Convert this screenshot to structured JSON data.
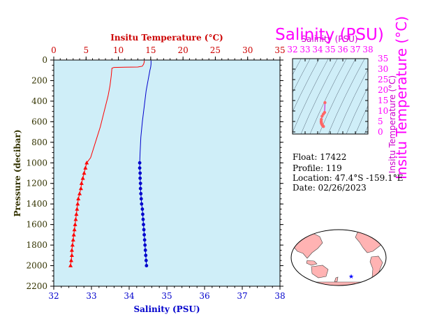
{
  "chart_data": [
    {
      "type": "line",
      "top_axis_label": "Insitu Temperature (°C)",
      "bottom_axis_label": "Salinity (PSU)",
      "ylabel": "Pressure (decibar)",
      "xlim_temperature": [
        0,
        35
      ],
      "xlim_salinity": [
        32,
        38
      ],
      "ylim": [
        0,
        2200
      ],
      "y_inverted": true,
      "temperature_ticks": [
        "0",
        "5",
        "10",
        "15",
        "20",
        "25",
        "30",
        "35"
      ],
      "salinity_ticks": [
        "32",
        "33",
        "34",
        "35",
        "36",
        "37",
        "38"
      ],
      "pressure_ticks": [
        "0",
        "200",
        "400",
        "600",
        "800",
        "1000",
        "1200",
        "1400",
        "1600",
        "1800",
        "2000",
        "2200"
      ],
      "series": [
        {
          "quantity": "temperature",
          "color": "#ff0000",
          "marker": "triangle",
          "marker_from_pressure": 1000,
          "points": [
            [
              14.0,
              5
            ],
            [
              14.0,
              20
            ],
            [
              13.9,
              40
            ],
            [
              13.7,
              60
            ],
            [
              13.0,
              68
            ],
            [
              11.0,
              70
            ],
            [
              9.3,
              72
            ],
            [
              9.0,
              80
            ],
            [
              8.9,
              150
            ],
            [
              8.7,
              250
            ],
            [
              8.4,
              350
            ],
            [
              8.0,
              450
            ],
            [
              7.6,
              550
            ],
            [
              7.2,
              650
            ],
            [
              6.7,
              750
            ],
            [
              6.2,
              850
            ],
            [
              5.7,
              950
            ],
            [
              5.1,
              1000
            ],
            [
              4.9,
              1050
            ],
            [
              4.7,
              1100
            ],
            [
              4.5,
              1150
            ],
            [
              4.3,
              1200
            ],
            [
              4.2,
              1250
            ],
            [
              4.0,
              1300
            ],
            [
              3.8,
              1350
            ],
            [
              3.7,
              1400
            ],
            [
              3.6,
              1450
            ],
            [
              3.5,
              1500
            ],
            [
              3.4,
              1550
            ],
            [
              3.3,
              1600
            ],
            [
              3.2,
              1650
            ],
            [
              3.1,
              1700
            ],
            [
              3.0,
              1750
            ],
            [
              2.9,
              1800
            ],
            [
              2.8,
              1850
            ],
            [
              2.8,
              1900
            ],
            [
              2.7,
              1950
            ],
            [
              2.6,
              2000
            ]
          ]
        },
        {
          "quantity": "salinity",
          "color": "#0000cc",
          "marker": "circle",
          "marker_from_pressure": 1000,
          "points": [
            [
              34.58,
              5
            ],
            [
              34.58,
              40
            ],
            [
              34.57,
              70
            ],
            [
              34.55,
              100
            ],
            [
              34.5,
              200
            ],
            [
              34.45,
              300
            ],
            [
              34.4,
              450
            ],
            [
              34.35,
              600
            ],
            [
              34.31,
              750
            ],
            [
              34.29,
              900
            ],
            [
              34.28,
              1000
            ],
            [
              34.28,
              1050
            ],
            [
              34.29,
              1100
            ],
            [
              34.29,
              1150
            ],
            [
              34.3,
              1200
            ],
            [
              34.3,
              1250
            ],
            [
              34.31,
              1300
            ],
            [
              34.32,
              1350
            ],
            [
              34.33,
              1400
            ],
            [
              34.35,
              1450
            ],
            [
              34.36,
              1500
            ],
            [
              34.37,
              1550
            ],
            [
              34.38,
              1600
            ],
            [
              34.39,
              1650
            ],
            [
              34.4,
              1700
            ],
            [
              34.41,
              1750
            ],
            [
              34.42,
              1800
            ],
            [
              34.43,
              1850
            ],
            [
              34.44,
              1900
            ],
            [
              34.45,
              1950
            ],
            [
              34.46,
              2000
            ]
          ]
        }
      ]
    },
    {
      "type": "scatter",
      "xlabel": "Salinity (PSU)",
      "ylabel": "Insitu Temperature (°C)",
      "ylabel_overlap": "Insitu Temperature (°C)",
      "xlim": [
        32,
        38
      ],
      "ylim": [
        -1,
        35
      ],
      "x_ticks": [
        "32",
        "33",
        "34",
        "35",
        "36",
        "37",
        "38"
      ],
      "y_ticks": [
        "0",
        "5",
        "10",
        "15",
        "20",
        "25",
        "30",
        "35"
      ],
      "label_color": "#ff00ff",
      "series": [
        {
          "color": "#ff6666",
          "points": [
            [
              34.58,
              14.0
            ],
            [
              34.55,
              9.3
            ],
            [
              34.45,
              8.5
            ],
            [
              34.35,
              7.5
            ],
            [
              34.29,
              6.0
            ],
            [
              34.28,
              5.1
            ],
            [
              34.29,
              4.5
            ],
            [
              34.3,
              4.2
            ],
            [
              34.33,
              3.7
            ],
            [
              34.37,
              3.3
            ],
            [
              34.4,
              3.0
            ],
            [
              34.43,
              2.8
            ],
            [
              34.46,
              2.6
            ]
          ]
        }
      ]
    }
  ],
  "info": {
    "float": "Float:  17422",
    "profile": "Profile:  119",
    "location": "Location:  47.4°S  -159.1°E",
    "date": "Date:  02/26/2023"
  },
  "map": {
    "land_color": "#ffb3b3",
    "ocean_color": "#ffffff",
    "marker_color": "#0000ff",
    "float_lon": -159.1,
    "float_lat": -47.4
  }
}
